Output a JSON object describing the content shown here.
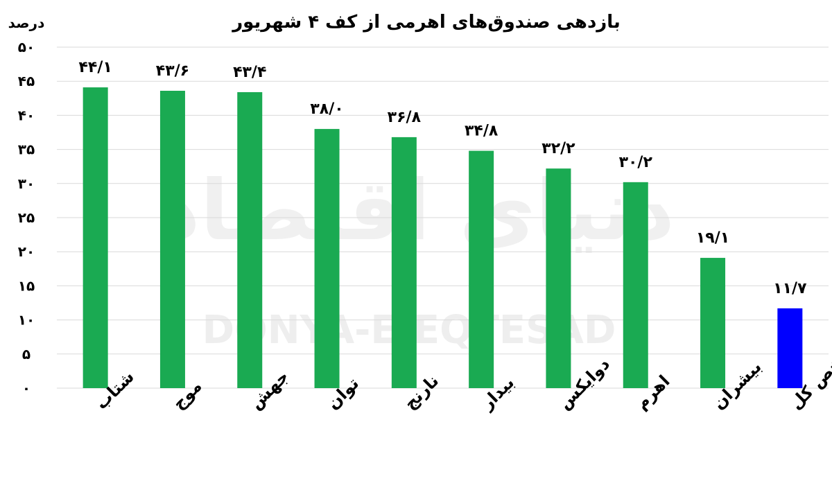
{
  "chart_data": {
    "type": "bar",
    "title": "بازدهی صندوق‌های اهرمی از کف ۴ شهریور",
    "ylabel": "درصد",
    "ylim": [
      0,
      50
    ],
    "ytick_labels": [
      "۰",
      "۵",
      "۱۰",
      "۱۵",
      "۲۰",
      "۲۵",
      "۳۰",
      "۳۵",
      "۴۰",
      "۴۵",
      "۵۰"
    ],
    "categories": [
      "شتاب",
      "موج",
      "جهش",
      "توان",
      "نارنج",
      "بیدار",
      "دوایکس",
      "اهرم",
      "بیشران",
      "شاخص کل"
    ],
    "values": [
      44.1,
      43.6,
      43.4,
      38.0,
      36.8,
      34.8,
      32.2,
      30.2,
      19.1,
      11.7
    ],
    "value_labels": [
      "۴۴/۱",
      "۴۳/۶",
      "۴۳/۴",
      "۳۸/۰",
      "۳۶/۸",
      "۳۴/۸",
      "۳۲/۲",
      "۳۰/۲",
      "۱۹/۱",
      "۱۱/۷"
    ],
    "colors": [
      "#1aaa52",
      "#1aaa52",
      "#1aaa52",
      "#1aaa52",
      "#1aaa52",
      "#1aaa52",
      "#1aaa52",
      "#1aaa52",
      "#1aaa52",
      "#0000ff"
    ],
    "grid": true,
    "legend": "none"
  },
  "watermark": {
    "latin": "DONYA-E-EQTESAD",
    "persian": "دنیای اقتصاد"
  }
}
